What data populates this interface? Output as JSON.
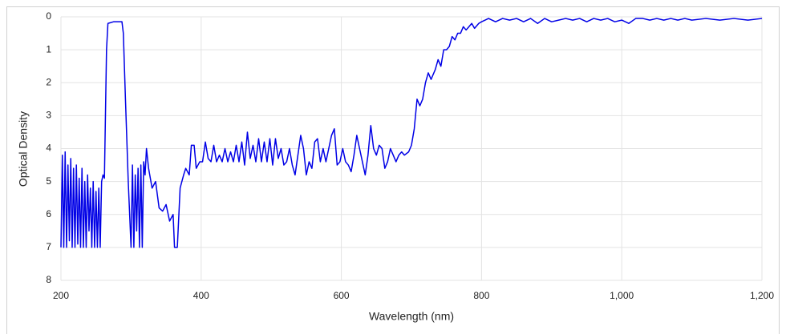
{
  "chart_data": {
    "type": "line",
    "x_label": "Wavelength (nm)",
    "y_label": "Optical Density",
    "xlim": [
      200,
      1200
    ],
    "xticks": [
      200,
      400,
      600,
      800,
      {
        "value": 1000,
        "label": "1,000"
      },
      {
        "value": 1200,
        "label": "1,200"
      }
    ],
    "ylim": [
      0,
      8
    ],
    "yticks": [
      0,
      1,
      2,
      3,
      4,
      5,
      6,
      7,
      8
    ],
    "y_inverted": true,
    "grid": true,
    "x": [
      200,
      202,
      204,
      206,
      208,
      210,
      212,
      214,
      216,
      218,
      220,
      222,
      224,
      226,
      228,
      230,
      232,
      234,
      236,
      238,
      240,
      242,
      244,
      246,
      248,
      250,
      252,
      254,
      256,
      258,
      260,
      262,
      265,
      267,
      275,
      283,
      287,
      289,
      292,
      296,
      300,
      302,
      304,
      306,
      308,
      310,
      312,
      314,
      316,
      318,
      320,
      322,
      325,
      330,
      335,
      340,
      345,
      350,
      355,
      360,
      362,
      366,
      370,
      375,
      378,
      383,
      386,
      390,
      393,
      398,
      402,
      406,
      410,
      414,
      418,
      422,
      426,
      430,
      434,
      438,
      442,
      446,
      450,
      454,
      458,
      462,
      466,
      470,
      474,
      478,
      482,
      486,
      490,
      494,
      498,
      502,
      506,
      510,
      514,
      518,
      522,
      526,
      530,
      534,
      538,
      542,
      546,
      550,
      554,
      558,
      562,
      566,
      570,
      574,
      578,
      582,
      586,
      590,
      594,
      598,
      602,
      606,
      610,
      614,
      618,
      622,
      626,
      630,
      634,
      638,
      642,
      646,
      650,
      654,
      658,
      662,
      666,
      670,
      674,
      678,
      682,
      686,
      690,
      696,
      700,
      704,
      708,
      712,
      716,
      720,
      724,
      728,
      734,
      738,
      742,
      746,
      750,
      754,
      758,
      762,
      766,
      770,
      774,
      778,
      782,
      786,
      790,
      796,
      800,
      810,
      820,
      830,
      840,
      850,
      860,
      870,
      880,
      890,
      900,
      910,
      920,
      930,
      940,
      950,
      960,
      970,
      980,
      990,
      1000,
      1010,
      1020,
      1030,
      1040,
      1050,
      1060,
      1070,
      1080,
      1090,
      1100,
      1120,
      1140,
      1160,
      1180,
      1200
    ],
    "series": [
      {
        "color": "#0000e6",
        "values": [
          7,
          4.2,
          7,
          4.1,
          7,
          4.5,
          6.8,
          4.3,
          7,
          4.6,
          7,
          4.5,
          6.9,
          4.9,
          7,
          4.6,
          7,
          5.0,
          7,
          4.8,
          6.5,
          5.2,
          7,
          5.0,
          7,
          5.3,
          7,
          5.2,
          7,
          5.0,
          4.8,
          4.9,
          1.0,
          0.2,
          0.15,
          0.15,
          0.15,
          0.5,
          2.5,
          5.0,
          7,
          4.5,
          7,
          4.8,
          6.5,
          4.6,
          7,
          4.5,
          7,
          4.4,
          4.8,
          4.0,
          4.6,
          5.2,
          5.0,
          5.8,
          5.9,
          5.7,
          6.2,
          6.0,
          7,
          7,
          5.2,
          4.8,
          4.6,
          4.8,
          3.9,
          3.9,
          4.6,
          4.4,
          4.4,
          3.8,
          4.3,
          4.4,
          3.9,
          4.4,
          4.2,
          4.4,
          4.0,
          4.4,
          4.1,
          4.4,
          3.9,
          4.4,
          3.8,
          4.5,
          3.5,
          4.3,
          3.9,
          4.4,
          3.7,
          4.4,
          3.8,
          4.4,
          3.7,
          4.5,
          3.7,
          4.3,
          4.0,
          4.5,
          4.4,
          4.0,
          4.5,
          4.8,
          4.2,
          3.6,
          4.0,
          4.8,
          4.4,
          4.6,
          3.8,
          3.7,
          4.4,
          4.0,
          4.4,
          4.0,
          3.6,
          3.4,
          4.5,
          4.4,
          4.0,
          4.4,
          4.5,
          4.7,
          4.2,
          3.6,
          4.0,
          4.4,
          4.8,
          4.2,
          3.3,
          4.0,
          4.2,
          3.9,
          4.0,
          4.6,
          4.4,
          4.0,
          4.2,
          4.4,
          4.2,
          4.1,
          4.2,
          4.1,
          3.9,
          3.4,
          2.5,
          2.7,
          2.5,
          2.0,
          1.7,
          1.9,
          1.6,
          1.3,
          1.5,
          1.0,
          1.0,
          0.9,
          0.6,
          0.7,
          0.5,
          0.5,
          0.3,
          0.4,
          0.3,
          0.2,
          0.35,
          0.2,
          0.15,
          0.05,
          0.15,
          0.05,
          0.1,
          0.05,
          0.15,
          0.05,
          0.2,
          0.05,
          0.15,
          0.1,
          0.05,
          0.1,
          0.05,
          0.15,
          0.05,
          0.1,
          0.05,
          0.15,
          0.1,
          0.2,
          0.05,
          0.05,
          0.1,
          0.05,
          0.1,
          0.05,
          0.1,
          0.05,
          0.1,
          0.05,
          0.1,
          0.05,
          0.1,
          0.05
        ]
      }
    ]
  }
}
